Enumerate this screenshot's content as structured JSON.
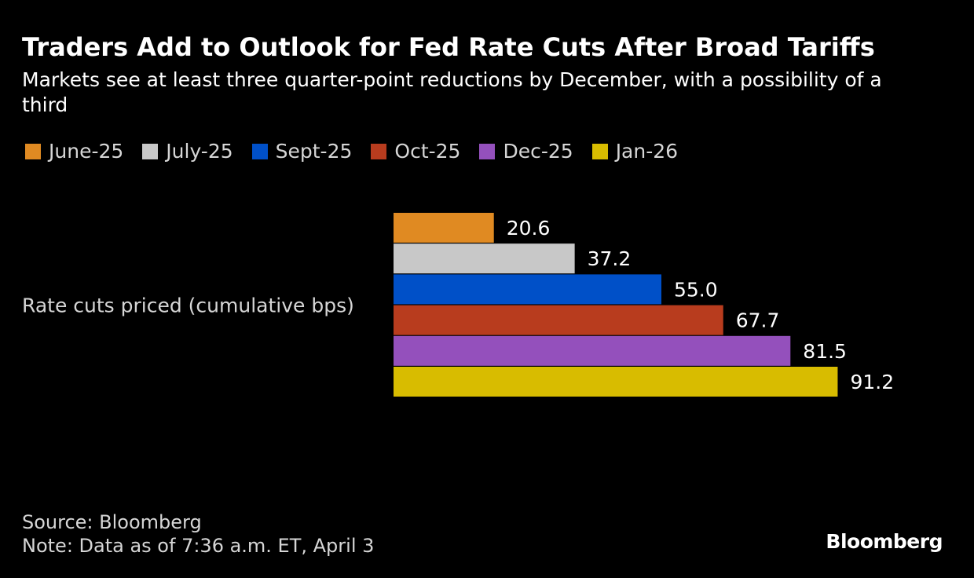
{
  "title": "Traders Add to Outlook for Fed Rate Cuts After Broad Tariffs",
  "subtitle": "Markets see at least three quarter-point reductions by December, with a possibility of a third",
  "chart_data": {
    "type": "bar",
    "orientation": "horizontal",
    "categories": [
      "Rate cuts priced (cumulative bps)"
    ],
    "series": [
      {
        "name": "June-25",
        "values": [
          20.6
        ],
        "color": "#e08a22"
      },
      {
        "name": "July-25",
        "values": [
          37.2
        ],
        "color": "#c8c8c8"
      },
      {
        "name": "Sept-25",
        "values": [
          55.0
        ],
        "color": "#0050c8"
      },
      {
        "name": "Oct-25",
        "values": [
          67.7
        ],
        "color": "#b83c1e"
      },
      {
        "name": "Dec-25",
        "values": [
          81.5
        ],
        "color": "#9450bc"
      },
      {
        "name": "Jan-26",
        "values": [
          91.2
        ],
        "color": "#d8bc00"
      }
    ],
    "data_labels": [
      "20.6",
      "37.2",
      "55.0",
      "67.7",
      "81.5",
      "91.2"
    ],
    "xlim": [
      0,
      100
    ],
    "grid": false,
    "legend_position": "top-left"
  },
  "footer": {
    "source": "Source: Bloomberg",
    "note": "Note: Data as of 7:36 a.m. ET, April 3"
  },
  "logo": "Bloomberg"
}
